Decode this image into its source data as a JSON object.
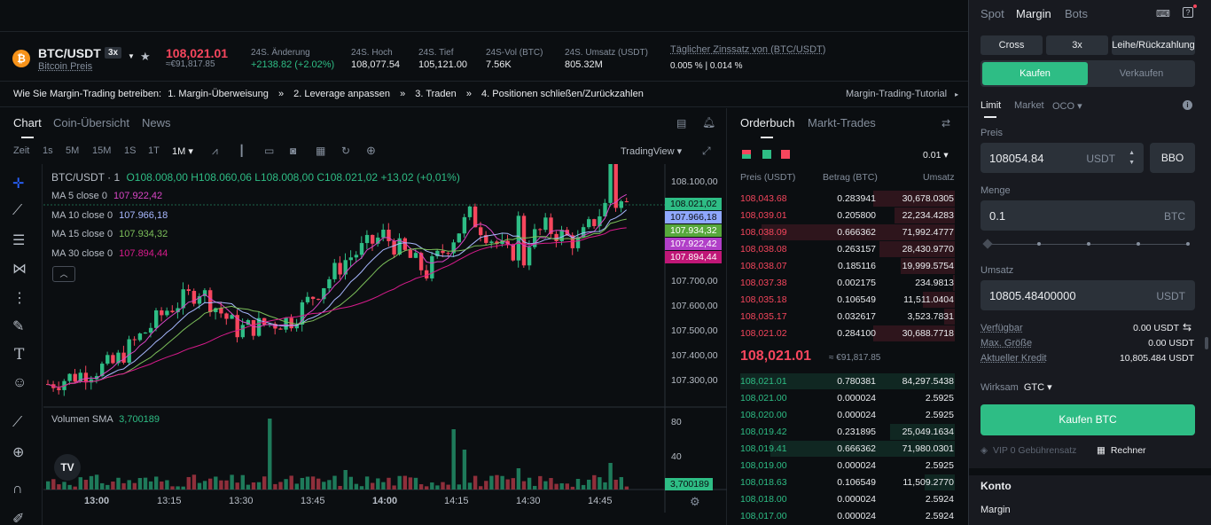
{
  "ticker": {
    "pair": "BTC/USDT",
    "leverage": "3x",
    "subtitle": "Bitcoin Preis",
    "last_price": "108,021.01",
    "last_price_eur": "≈€91,817.85",
    "stats": [
      {
        "label": "24S. Änderung",
        "value": "+2138.82 (+2.02%)"
      },
      {
        "label": "24S. Hoch",
        "value": "108,077.54"
      },
      {
        "label": "24S. Tief",
        "value": "105,121.00"
      },
      {
        "label": "24S-Vol (BTC)",
        "value": "7.56K"
      },
      {
        "label": "24S. Umsatz (USDT)",
        "value": "805.32M"
      },
      {
        "label": "Täglicher Zinssatz von (BTC/USDT)",
        "value": "0.005 % | 0.014 %"
      }
    ],
    "coin_glyph": "₿"
  },
  "guide": {
    "intro": "Wie Sie Margin-Trading betreiben:",
    "steps": [
      "1. Margin-Überweisung",
      "2. Leverage anpassen",
      "3. Traden",
      "4. Positionen schließen/Zurückzahlen"
    ],
    "tutorial": "Margin-Trading-Tutorial"
  },
  "chart_tabs": [
    "Chart",
    "Coin-Übersicht",
    "News"
  ],
  "toolbar": {
    "zeit": "Zeit",
    "intervals": [
      "1s",
      "5M",
      "15M",
      "1S",
      "1T",
      "1M ▾"
    ],
    "view": "TradingView ▾"
  },
  "legend": {
    "ohlc_title": "BTC/USDT · 1",
    "o": "O108.008,00",
    "h": "H108.060,06",
    "l": "L108.008,00",
    "c": "C108.021,02",
    "chg": "+13,02 (+0,01%)",
    "ma": [
      {
        "label": "MA 5 close 0",
        "value": "107.922,42",
        "color": "#d946c6"
      },
      {
        "label": "MA 10 close 0",
        "value": "107.966,18",
        "color": "#a8b8ff"
      },
      {
        "label": "MA 15 close 0",
        "value": "107.934,32",
        "color": "#7cbf5a"
      },
      {
        "label": "MA 30 close 0",
        "value": "107.894,44",
        "color": "#d81b8c"
      }
    ],
    "volume_label": "Volumen SMA",
    "volume_value": "3,700189"
  },
  "price_axis": {
    "ticks": [
      "108.100,00",
      "107.700,00",
      "107.600,00",
      "107.500,00",
      "107.400,00",
      "107.300,00"
    ],
    "tags": [
      {
        "text": "108.021,02",
        "color": "#2ebd85"
      },
      {
        "text": "107.966,18",
        "color": "#8fa8ff"
      },
      {
        "text": "107.934,32",
        "color": "#57a83c"
      },
      {
        "text": "107.922,42",
        "color": "#b13fc8"
      },
      {
        "text": "107.894,44",
        "color": "#c01777"
      }
    ],
    "vol_ticks": [
      "80",
      "40"
    ],
    "vol_tag": "3,700189"
  },
  "time_axis": [
    "13:00",
    "13:15",
    "13:30",
    "13:45",
    "14:00",
    "14:15",
    "14:30",
    "14:45"
  ],
  "orderbook": {
    "tabs": [
      "Orderbuch",
      "Markt-Trades"
    ],
    "precision": "0.01 ▾",
    "headers": [
      "Preis (USDT)",
      "Betrag (BTC)",
      "Umsatz"
    ],
    "asks": [
      [
        "108,043.68",
        "0.283941",
        "30,678.0305",
        0.38
      ],
      [
        "108,039.01",
        "0.205800",
        "22,234.4283",
        0.28
      ],
      [
        "108,038.09",
        "0.666362",
        "71,992.4777",
        0.9
      ],
      [
        "108,038.08",
        "0.263157",
        "28,430.9770",
        0.35
      ],
      [
        "108,038.07",
        "0.185116",
        "19,999.5754",
        0.25
      ],
      [
        "108,037.38",
        "0.002175",
        "234.9813",
        0.01
      ],
      [
        "108,035.18",
        "0.106549",
        "11,511.0404",
        0.15
      ],
      [
        "108,035.17",
        "0.032617",
        "3,523.7831",
        0.05
      ],
      [
        "108,021.02",
        "0.284100",
        "30,688.7718",
        0.38
      ]
    ],
    "mid_price": "108,021.01",
    "mid_eur": "≈ €91,817.85",
    "bids": [
      [
        "108,021.01",
        "0.780381",
        "84,297.5438",
        1.0
      ],
      [
        "108,021.00",
        "0.000024",
        "2.5925",
        0.0
      ],
      [
        "108,020.00",
        "0.000024",
        "2.5925",
        0.0
      ],
      [
        "108,019.42",
        "0.231895",
        "25,049.1634",
        0.3
      ],
      [
        "108,019.41",
        "0.666362",
        "71,980.0301",
        0.86
      ],
      [
        "108,019.00",
        "0.000024",
        "2.5925",
        0.0
      ],
      [
        "108,018.63",
        "0.106549",
        "11,509.2770",
        0.14
      ],
      [
        "108,018.00",
        "0.000024",
        "2.5924",
        0.0
      ],
      [
        "108,017.00",
        "0.000024",
        "2.5924",
        0.0
      ]
    ]
  },
  "trade": {
    "modes": [
      "Spot",
      "Margin",
      "Bots"
    ],
    "margin_type": "Cross",
    "leverage": "3x",
    "borrow": "Leihe/Rückzahlung",
    "buy": "Kaufen",
    "sell": "Verkaufen",
    "order_types": [
      "Limit",
      "Market",
      "OCO ▾"
    ],
    "price_label": "Preis",
    "price_value": "108054.84",
    "price_unit": "USDT",
    "bbo": "BBO",
    "qty_label": "Menge",
    "qty_value": "0.1",
    "qty_unit": "BTC",
    "total_label": "Umsatz",
    "total_value": "10805.48400000",
    "total_unit": "USDT",
    "available_label": "Verfügbar",
    "available_value": "0.00 USDT",
    "max_label": "Max. Größe",
    "max_value": "0.00 USDT",
    "credit_label": "Aktueller Kredit",
    "credit_value": "10,805.484 USDT",
    "tif_label": "Wirksam",
    "tif_value": "GTC ▾",
    "submit": "Kaufen BTC",
    "vip": "VIP 0 Gebührensatz",
    "calc": "Rechner",
    "account_title": "Konto",
    "account_sub": "Margin"
  },
  "colors": {
    "up": "#2ebd85",
    "down": "#f6465d",
    "accent": "#2ebd85"
  }
}
